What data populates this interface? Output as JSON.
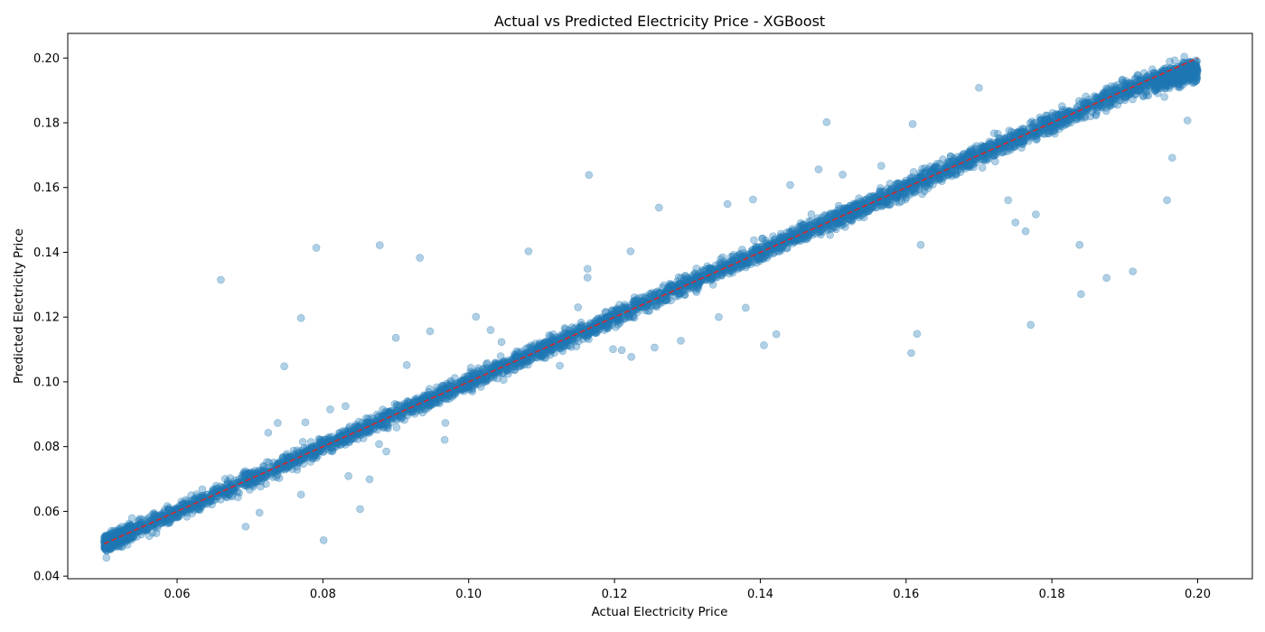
{
  "chart_data": {
    "type": "scatter",
    "title": "Actual vs Predicted Electricity Price - XGBoost",
    "xlabel": "Actual Electricity Price",
    "ylabel": "Predicted Electricity Price",
    "xlim": [
      0.045,
      0.2075
    ],
    "ylim": [
      0.0392,
      0.2076
    ],
    "xticks": [
      "0.06",
      "0.08",
      "0.10",
      "0.12",
      "0.14",
      "0.16",
      "0.18",
      "0.20"
    ],
    "yticks": [
      "0.04",
      "0.06",
      "0.08",
      "0.10",
      "0.12",
      "0.14",
      "0.16",
      "0.18",
      "0.20"
    ],
    "grid": false,
    "legend": "none",
    "series": [
      {
        "marker_color": "#1f77b4",
        "marker_alpha": 0.35,
        "approx_point_count": 5000,
        "distribution": "tight band along y = x from 0.05 to 0.20 with residual spread of about 0.002",
        "outliers": [
          [
            0.066,
            0.1315
          ],
          [
            0.0791,
            0.1414
          ],
          [
            0.0878,
            0.1422
          ],
          [
            0.0933,
            0.1383
          ],
          [
            0.077,
            0.1197
          ],
          [
            0.0747,
            0.1048
          ],
          [
            0.09,
            0.1136
          ],
          [
            0.0947,
            0.1156
          ],
          [
            0.101,
            0.1201
          ],
          [
            0.1082,
            0.1403
          ],
          [
            0.1165,
            0.1639
          ],
          [
            0.1163,
            0.1349
          ],
          [
            0.1163,
            0.1322
          ],
          [
            0.1222,
            0.1403
          ],
          [
            0.1261,
            0.1538
          ],
          [
            0.1491,
            0.1802
          ],
          [
            0.1609,
            0.1796
          ],
          [
            0.17,
            0.1908
          ],
          [
            0.0801,
            0.0511
          ],
          [
            0.0503,
            0.0457
          ],
          [
            0.0694,
            0.0553
          ],
          [
            0.0851,
            0.0607
          ],
          [
            0.0864,
            0.0699
          ],
          [
            0.0967,
            0.0821
          ],
          [
            0.0713,
            0.0596
          ],
          [
            0.077,
            0.0652
          ],
          [
            0.0835,
            0.0709
          ],
          [
            0.1198,
            0.1101
          ],
          [
            0.1223,
            0.1077
          ],
          [
            0.1255,
            0.1106
          ],
          [
            0.1291,
            0.1127
          ],
          [
            0.1343,
            0.12
          ],
          [
            0.138,
            0.1229
          ],
          [
            0.1405,
            0.1113
          ],
          [
            0.1422,
            0.1147
          ],
          [
            0.1607,
            0.1089
          ],
          [
            0.1615,
            0.1148
          ],
          [
            0.162,
            0.1423
          ],
          [
            0.1771,
            0.1176
          ],
          [
            0.1838,
            0.1423
          ],
          [
            0.184,
            0.1271
          ],
          [
            0.1875,
            0.1321
          ],
          [
            0.1911,
            0.1341
          ],
          [
            0.1958,
            0.1561
          ],
          [
            0.1965,
            0.1692
          ],
          [
            0.1986,
            0.1807
          ],
          [
            0.1764,
            0.1465
          ],
          [
            0.1778,
            0.1517
          ],
          [
            0.174,
            0.1561
          ],
          [
            0.175,
            0.1492
          ],
          [
            0.1355,
            0.1549
          ],
          [
            0.139,
            0.1563
          ],
          [
            0.1441,
            0.1608
          ],
          [
            0.148,
            0.1656
          ],
          [
            0.1513,
            0.164
          ],
          [
            0.1566,
            0.1667
          ],
          [
            0.0725,
            0.0843
          ],
          [
            0.0738,
            0.0873
          ],
          [
            0.0776,
            0.0875
          ],
          [
            0.081,
            0.0915
          ],
          [
            0.0831,
            0.0925
          ],
          [
            0.0915,
            0.1052
          ],
          [
            0.0887,
            0.0785
          ],
          [
            0.0877,
            0.0808
          ],
          [
            0.0968,
            0.0873
          ],
          [
            0.1125,
            0.105
          ],
          [
            0.121,
            0.1098
          ],
          [
            0.115,
            0.123
          ],
          [
            0.103,
            0.116
          ],
          [
            0.1045,
            0.1123
          ]
        ]
      },
      {
        "name": "reference line",
        "style": "dashed",
        "color": "#d62728",
        "x": [
          0.05,
          0.2
        ],
        "y": [
          0.05,
          0.2
        ]
      }
    ]
  }
}
